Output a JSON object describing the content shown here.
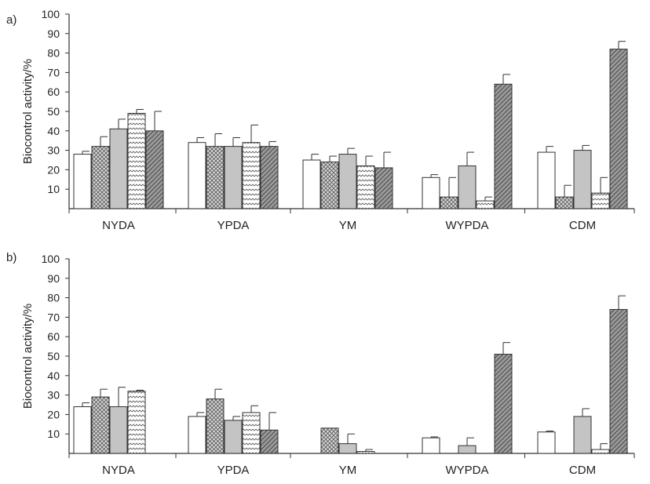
{
  "chart_data": [
    {
      "panel_label": "a)",
      "type": "bar",
      "ylabel": "Biocontrol activity/%",
      "ylim": [
        0,
        100
      ],
      "yticks": [
        "10",
        "20",
        "30",
        "40",
        "50",
        "60",
        "70",
        "80",
        "90",
        "100"
      ],
      "categories": [
        "NYDA",
        "YPDA",
        "YM",
        "WYPDA",
        "CDM"
      ],
      "series": [
        {
          "pattern": "blank",
          "values": [
            28,
            34,
            25,
            16,
            29
          ],
          "errors": [
            1.5,
            2.5,
            3,
            1.5,
            3
          ]
        },
        {
          "pattern": "crosshatch",
          "values": [
            32,
            32,
            24,
            6,
            6
          ],
          "errors": [
            5,
            6.5,
            3,
            10,
            6
          ]
        },
        {
          "pattern": "grey",
          "values": [
            41,
            32,
            28,
            22,
            30
          ],
          "errors": [
            5,
            4.5,
            3,
            7,
            2.5
          ]
        },
        {
          "pattern": "wavy",
          "values": [
            49,
            34,
            22,
            4,
            8
          ],
          "errors": [
            2,
            9,
            5,
            2,
            8
          ]
        },
        {
          "pattern": "diagonal",
          "values": [
            40,
            32,
            21,
            64,
            82
          ],
          "errors": [
            10,
            2.5,
            8,
            5,
            4
          ]
        }
      ]
    },
    {
      "panel_label": "b)",
      "type": "bar",
      "ylabel": "Biocontrol activity/%",
      "ylim": [
        0,
        100
      ],
      "yticks": [
        "10",
        "20",
        "30",
        "40",
        "50",
        "60",
        "70",
        "80",
        "90",
        "100"
      ],
      "categories": [
        "NYDA",
        "YPDA",
        "YM",
        "WYPDA",
        "CDM"
      ],
      "series": [
        {
          "pattern": "blank",
          "values": [
            24,
            19,
            0,
            8,
            11
          ],
          "errors": [
            2,
            2,
            0,
            0.5,
            0.5
          ]
        },
        {
          "pattern": "crosshatch",
          "values": [
            29,
            28,
            13,
            0,
            0
          ],
          "errors": [
            4,
            5,
            0,
            0,
            0
          ]
        },
        {
          "pattern": "grey",
          "values": [
            24,
            17,
            5,
            4,
            19
          ],
          "errors": [
            10,
            2,
            5,
            4,
            4
          ]
        },
        {
          "pattern": "wavy",
          "values": [
            32,
            21,
            1,
            0,
            2
          ],
          "errors": [
            0.5,
            3.5,
            1,
            0,
            3
          ]
        },
        {
          "pattern": "diagonal",
          "values": [
            0,
            12,
            0,
            51,
            74
          ],
          "errors": [
            0,
            9,
            0,
            6,
            7
          ]
        }
      ]
    }
  ],
  "style": {
    "axis_color": "#333333",
    "bar_stroke": "#333333",
    "grey_fill": "#c4c4c4",
    "diagonal_fill": "#8a8a8a",
    "crosshatch_fill": "#d8d8d8"
  }
}
